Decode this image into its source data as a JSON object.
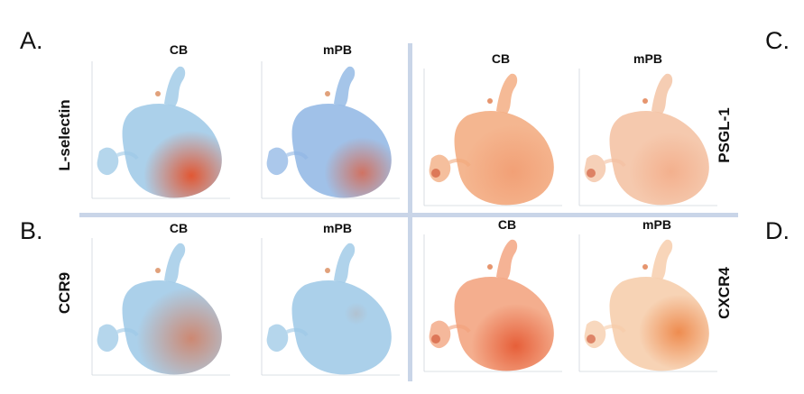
{
  "panel_letters": {
    "a": "A.",
    "b": "B.",
    "c": "C.",
    "d": "D."
  },
  "markers": {
    "a": "L-selectin",
    "b": "CCR9",
    "c": "PSGL-1",
    "d": "CXCR4"
  },
  "columns": {
    "cb": "CB",
    "mpb": "mPB"
  },
  "colors": {
    "low": "#9cc8e6",
    "mid": "#f2a97c",
    "high": "#e4512a",
    "divider": "#c9d5e8"
  }
}
